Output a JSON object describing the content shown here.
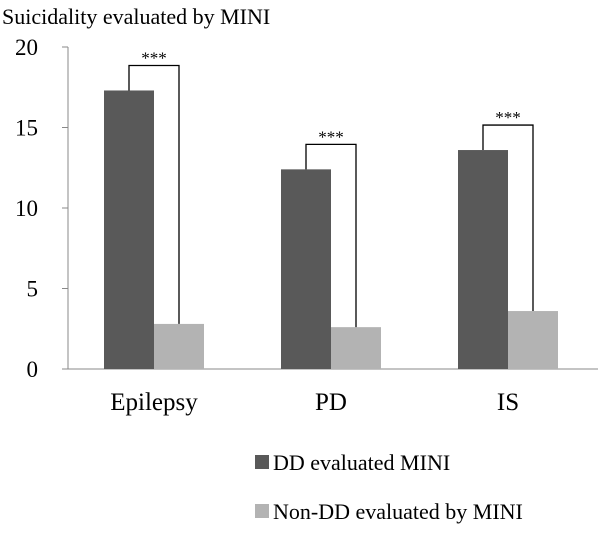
{
  "chart_data": {
    "type": "bar",
    "title": "Suicidality evaluated by MINI",
    "xlabel": "",
    "ylabel": "",
    "categories": [
      "Epilepsy",
      "PD",
      "IS"
    ],
    "series": [
      {
        "name": "DD evaluated MINI",
        "color": "#595959",
        "values": [
          17.3,
          12.4,
          13.6
        ]
      },
      {
        "name": "Non-DD evaluated by MINI",
        "color": "#b3b3b3",
        "values": [
          2.8,
          2.6,
          3.6
        ]
      }
    ],
    "ylim": [
      0,
      20
    ],
    "yticks": [
      "0",
      "5",
      "10",
      "15",
      "20"
    ],
    "grid": false,
    "legend_position": "bottom",
    "significance": [
      "***",
      "***",
      "***"
    ]
  }
}
